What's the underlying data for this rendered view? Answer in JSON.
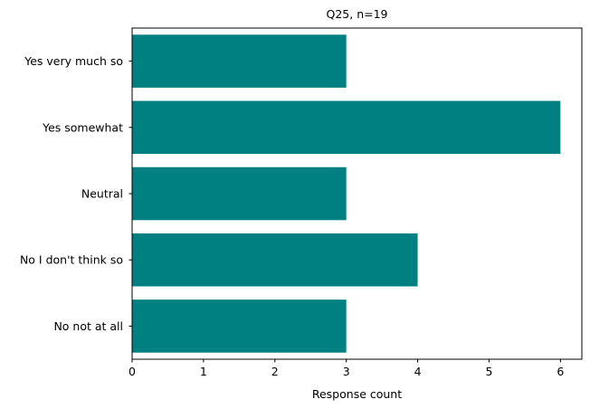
{
  "chart_data": {
    "type": "bar",
    "orientation": "horizontal",
    "title": "Q25, n=19",
    "xlabel": "Response count",
    "ylabel": "",
    "categories": [
      "Yes very much so",
      "Yes somewhat",
      "Neutral",
      "No I don't think so",
      "No not at all"
    ],
    "values": [
      3,
      6,
      3,
      4,
      3
    ],
    "xlim": [
      0,
      6.3
    ],
    "xticks": [
      0,
      1,
      2,
      3,
      4,
      5,
      6
    ],
    "bar_color": "#008080",
    "grid": false,
    "legend": false
  }
}
